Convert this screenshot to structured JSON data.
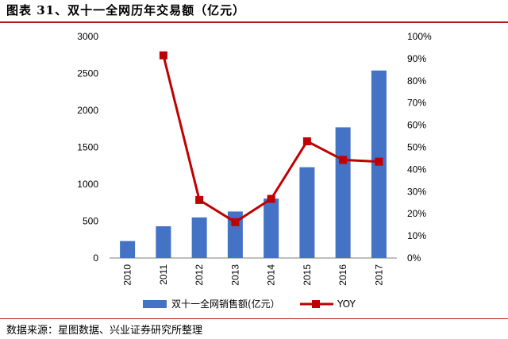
{
  "header": {
    "title": "图表 31、双十一全网历年交易额（亿元）"
  },
  "footer": {
    "source": "数据来源：星图数据、兴业证券研究所整理"
  },
  "chart_data": {
    "type": "bar",
    "categories": [
      "2010",
      "2011",
      "2012",
      "2013",
      "2014",
      "2015",
      "2016",
      "2017"
    ],
    "series": [
      {
        "name": "双十一全网销售额(亿元）",
        "type": "bar",
        "axis": "left",
        "values": [
          230,
          430,
          550,
          630,
          805,
          1230,
          1770,
          2540
        ],
        "color": "#4472c4"
      },
      {
        "name": "YOY",
        "type": "line",
        "axis": "right",
        "values": [
          null,
          0.915,
          0.262,
          0.162,
          0.267,
          0.527,
          0.443,
          0.435
        ],
        "color": "#c00000"
      }
    ],
    "y_left": {
      "lim": [
        0,
        3000
      ],
      "ticks": [
        "0",
        "500",
        "1000",
        "1500",
        "2000",
        "2500",
        "3000"
      ]
    },
    "y_right": {
      "lim": [
        0,
        1.0
      ],
      "ticks": [
        "0%",
        "10%",
        "20%",
        "30%",
        "40%",
        "50%",
        "60%",
        "70%",
        "80%",
        "90%",
        "100%"
      ]
    },
    "grid": false,
    "legend": "bottom"
  }
}
